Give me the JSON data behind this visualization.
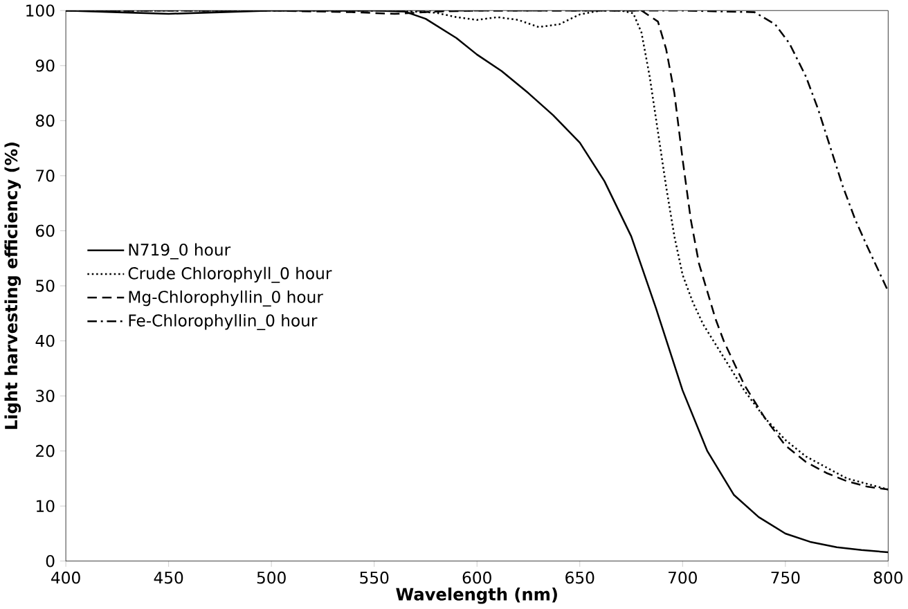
{
  "chart_data": {
    "type": "line",
    "xlabel": "Wavelength (nm)",
    "ylabel": "Light harvesting efficiency (%)",
    "xlim": [
      400,
      800
    ],
    "ylim": [
      0,
      100
    ],
    "xticks": [
      400,
      450,
      500,
      550,
      600,
      650,
      700,
      750,
      800
    ],
    "yticks": [
      0,
      10,
      20,
      30,
      40,
      50,
      60,
      70,
      80,
      90,
      100
    ],
    "grid": false,
    "legend": "left",
    "marker": "none",
    "series": [
      {
        "name": "N719_0 hour",
        "color": "#000000",
        "line_style": "solid",
        "x": [
          400,
          425,
          450,
          475,
          500,
          525,
          550,
          565,
          575,
          590,
          600,
          612,
          625,
          637,
          650,
          662,
          675,
          687,
          700,
          712,
          725,
          737,
          750,
          762,
          775,
          787,
          800
        ],
        "values": [
          100,
          99.7,
          99.4,
          99.7,
          100,
          100,
          100,
          99.8,
          98.5,
          95,
          92,
          89,
          85,
          81,
          76,
          69,
          59,
          46,
          31,
          20,
          12,
          8,
          5,
          3.5,
          2.5,
          2,
          1.6
        ]
      },
      {
        "name": "Crude Chlorophyll_0 hour",
        "color": "#000000",
        "line_style": "dotted",
        "x": [
          400,
          500,
          560,
          580,
          590,
          600,
          610,
          620,
          630,
          640,
          650,
          660,
          670,
          676,
          680,
          684,
          688,
          692,
          696,
          700,
          705,
          710,
          720,
          730,
          740,
          750,
          760,
          770,
          780,
          790,
          800
        ],
        "values": [
          100,
          100,
          100,
          99.6,
          98.8,
          98.3,
          98.8,
          98.3,
          97,
          97.5,
          99.3,
          100,
          100,
          99.5,
          96,
          88,
          78,
          68,
          59,
          52,
          47,
          43,
          37,
          31,
          26,
          22,
          19,
          17,
          15,
          14,
          13
        ]
      },
      {
        "name": "Mg-Chlorophyllin_0 hour",
        "color": "#000000",
        "line_style": "dashed",
        "x": [
          400,
          500,
          540,
          560,
          580,
          600,
          650,
          680,
          688,
          692,
          696,
          700,
          704,
          708,
          712,
          716,
          720,
          730,
          740,
          750,
          760,
          770,
          780,
          790,
          800
        ],
        "values": [
          100,
          100,
          99.7,
          99.4,
          99.8,
          100,
          100,
          100,
          98,
          93,
          85,
          73,
          62,
          54,
          49,
          44,
          40,
          32,
          26,
          21,
          18,
          16,
          14.5,
          13.5,
          13
        ]
      },
      {
        "name": "Fe-Chlorophyllin_0 hour",
        "color": "#000000",
        "line_style": "dashdot",
        "x": [
          400,
          500,
          600,
          700,
          735,
          745,
          752,
          760,
          766,
          772,
          778,
          784,
          790,
          795,
          800
        ],
        "values": [
          100,
          100,
          100,
          100,
          99.7,
          97.5,
          94,
          88,
          82,
          75,
          68,
          62,
          57,
          53,
          49
        ]
      }
    ]
  }
}
